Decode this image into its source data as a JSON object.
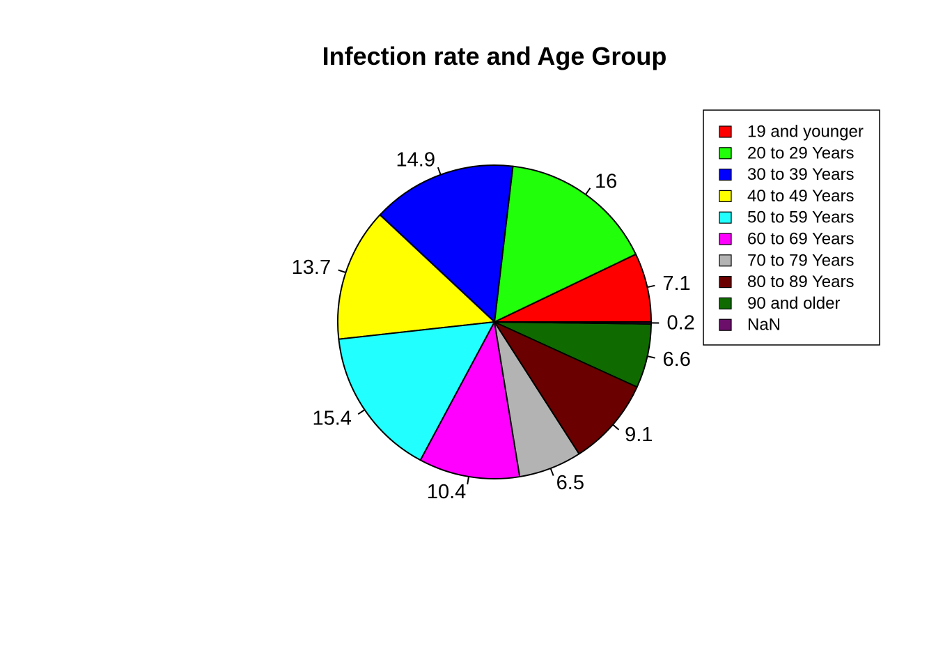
{
  "chart_data": {
    "type": "pie",
    "title": "Infection rate and Age Group",
    "legend_position": "top-right",
    "slices": [
      {
        "label": "19 and younger",
        "value": 7.1,
        "value_label": "7.1",
        "color": "#FF0000"
      },
      {
        "label": "20 to 29 Years",
        "value": 16,
        "value_label": "16",
        "color": "#22FF0A"
      },
      {
        "label": "30 to 39 Years",
        "value": 14.9,
        "value_label": "14.9",
        "color": "#0000FF"
      },
      {
        "label": "40 to 49 Years",
        "value": 13.7,
        "value_label": "13.7",
        "color": "#FFFF00"
      },
      {
        "label": "50 to 59 Years",
        "value": 15.4,
        "value_label": "15.4",
        "color": "#22FFFF"
      },
      {
        "label": "60 to 69 Years",
        "value": 10.4,
        "value_label": "10.4",
        "color": "#FF00FF"
      },
      {
        "label": "70 to 79 Years",
        "value": 6.5,
        "value_label": "6.5",
        "color": "#B3B3B3"
      },
      {
        "label": "80 to 89 Years",
        "value": 9.1,
        "value_label": "9.1",
        "color": "#6B0000"
      },
      {
        "label": "90 and older",
        "value": 6.6,
        "value_label": "6.6",
        "color": "#0F6B00"
      },
      {
        "label": "NaN",
        "value": 0.2,
        "value_label": "0.2",
        "color": "#6B0F6B"
      }
    ]
  }
}
